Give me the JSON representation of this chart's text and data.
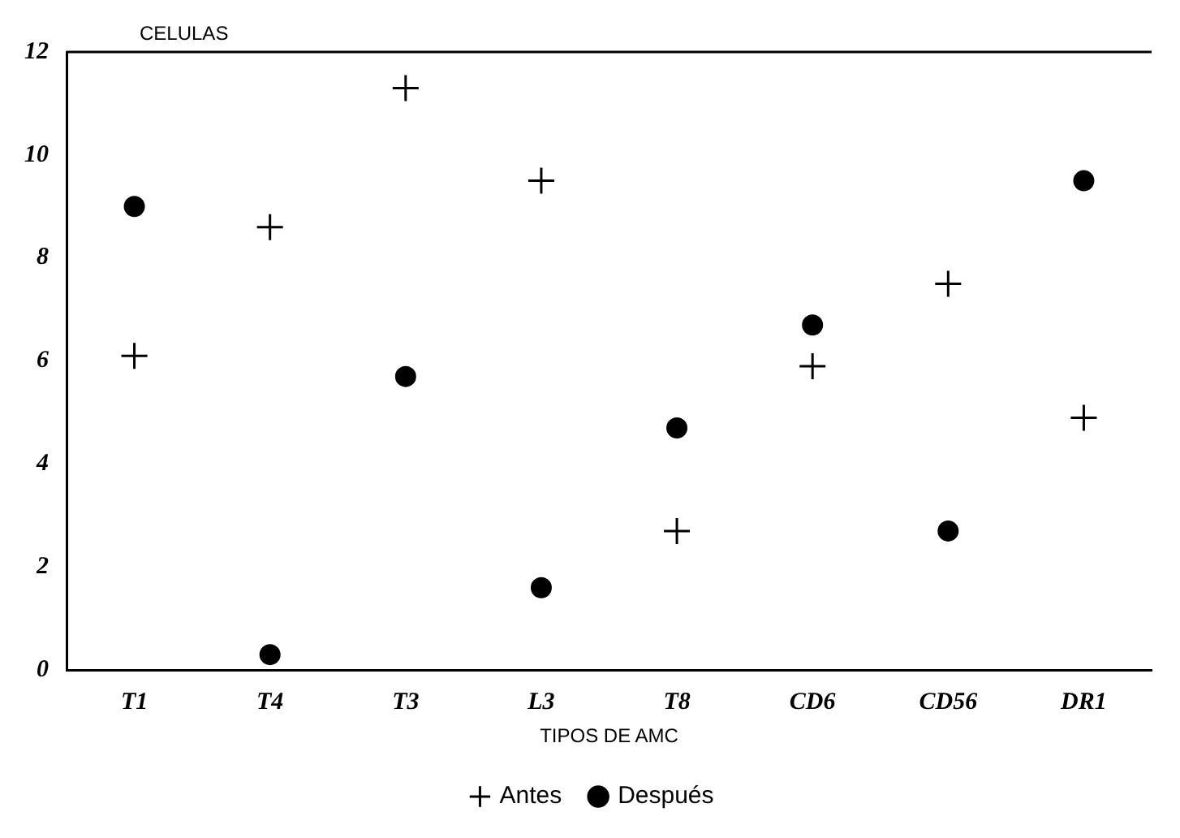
{
  "chart_data": {
    "type": "scatter",
    "ylabel": "CELULAS",
    "xlabel": "TIPOS DE AMC",
    "categories": [
      "T1",
      "T4",
      "T3",
      "L3",
      "T8",
      "CD6",
      "CD56",
      "DR1"
    ],
    "series": [
      {
        "name": "Antes",
        "color": "#000000",
        "marker": "cross",
        "values": [
          6.1,
          8.6,
          11.3,
          9.5,
          2.7,
          5.9,
          7.5,
          4.9
        ]
      },
      {
        "name": "Después",
        "color": "#000000",
        "marker": "circle",
        "values": [
          9.0,
          0.3,
          5.7,
          1.6,
          4.7,
          6.7,
          2.7,
          9.5
        ]
      }
    ],
    "ylim": [
      0,
      12
    ],
    "yticks": [
      0,
      2,
      4,
      6,
      8,
      10,
      12
    ],
    "legend": "bottom"
  }
}
